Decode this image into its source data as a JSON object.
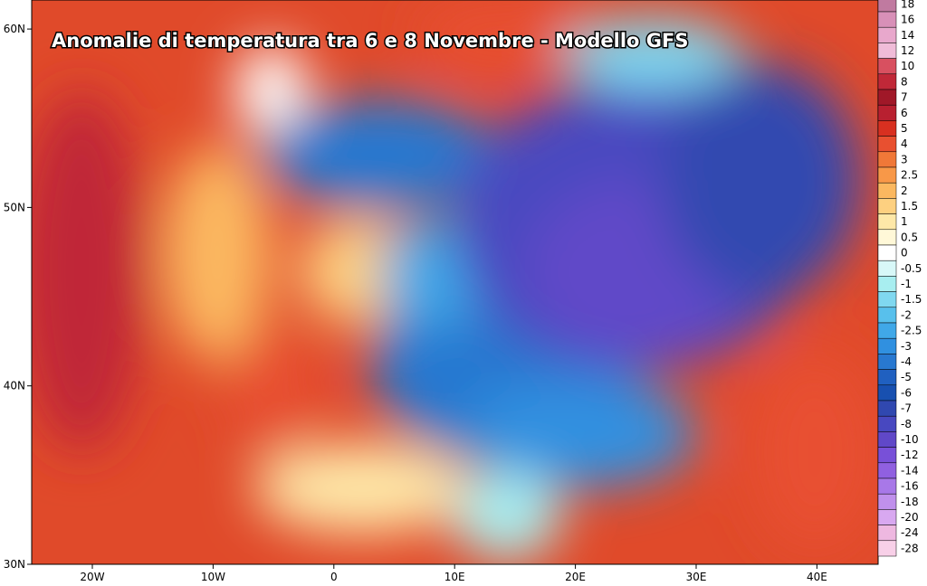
{
  "header": {
    "title": "Anomalie di temperatura tra 6 e 8 Novembre - Modello GFS"
  },
  "axes": {
    "latitudes": [
      "30N",
      "40N",
      "50N",
      "60N"
    ],
    "longitudes": [
      "20W",
      "10W",
      "0",
      "10E",
      "20E",
      "30E",
      "40E"
    ]
  },
  "legend": {
    "labels": [
      "18",
      "16",
      "14",
      "12",
      "10",
      "8",
      "7",
      "6",
      "5",
      "4",
      "3",
      "2.5",
      "2",
      "1.5",
      "1",
      "0.5",
      "0",
      "-0.5",
      "-1",
      "-1.5",
      "-2",
      "-2.5",
      "-3",
      "-4",
      "-5",
      "-6",
      "-7",
      "-8",
      "-10",
      "-12",
      "-14",
      "-16",
      "-18",
      "-20",
      "-24",
      "-28"
    ],
    "colors": [
      "#c07aa0",
      "#d890b8",
      "#e8a8cc",
      "#f0bcd8",
      "#d85060",
      "#c02838",
      "#a01828",
      "#b82030",
      "#d83020",
      "#e85030",
      "#f07838",
      "#f89848",
      "#fbb860",
      "#fdd080",
      "#fee8a8",
      "#fff8d8",
      "#ffffff",
      "#d8f8f8",
      "#a8eef0",
      "#80d8f0",
      "#58c0ec",
      "#40a8e8",
      "#3090e0",
      "#2878d0",
      "#2060c0",
      "#1850b0",
      "#3048b0",
      "#4848c0",
      "#6048c8",
      "#7850d8",
      "#9060e0",
      "#a878e8",
      "#c090ec",
      "#d8a8f0",
      "#eeb8e0",
      "#f8d0e8"
    ]
  }
}
